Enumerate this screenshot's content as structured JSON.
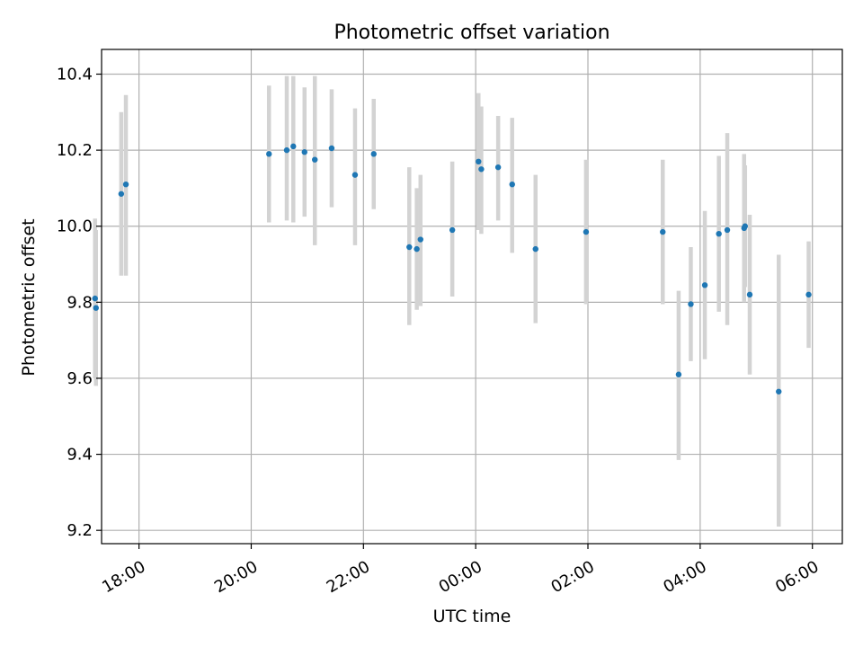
{
  "chart_data": {
    "type": "scatter",
    "title": "Photometric offset variation",
    "xlabel": "UTC time",
    "ylabel": "Photometric offset",
    "x_axis_kind": "time",
    "xlim": [
      "17:20",
      "06:32"
    ],
    "ylim": [
      9.165,
      10.465
    ],
    "grid": true,
    "xticks": [
      "18:00",
      "20:00",
      "22:00",
      "00:00",
      "02:00",
      "04:00",
      "06:00"
    ],
    "yticks": [
      "9.2",
      "9.4",
      "9.6",
      "9.8",
      "10.0",
      "10.2",
      "10.4"
    ],
    "colors": {
      "point": "#1f77b4",
      "errorbar": "#d3d3d3",
      "grid": "#b0b0b0"
    },
    "points": [
      {
        "t": "17:13",
        "y": 9.81,
        "lo": 9.6,
        "hi": 10.02
      },
      {
        "t": "17:14",
        "y": 9.785,
        "lo": 9.58,
        "hi": 9.99
      },
      {
        "t": "17:41",
        "y": 10.085,
        "lo": 9.87,
        "hi": 10.3
      },
      {
        "t": "17:46",
        "y": 10.11,
        "lo": 9.87,
        "hi": 10.345
      },
      {
        "t": "20:19",
        "y": 10.19,
        "lo": 10.01,
        "hi": 10.37
      },
      {
        "t": "20:38",
        "y": 10.2,
        "lo": 10.015,
        "hi": 10.395
      },
      {
        "t": "20:45",
        "y": 10.21,
        "lo": 10.01,
        "hi": 10.395
      },
      {
        "t": "20:57",
        "y": 10.195,
        "lo": 10.025,
        "hi": 10.365
      },
      {
        "t": "21:08",
        "y": 10.175,
        "lo": 9.95,
        "hi": 10.395
      },
      {
        "t": "21:26",
        "y": 10.205,
        "lo": 10.05,
        "hi": 10.36
      },
      {
        "t": "21:51",
        "y": 10.135,
        "lo": 9.95,
        "hi": 10.31
      },
      {
        "t": "22:11",
        "y": 10.19,
        "lo": 10.045,
        "hi": 10.335
      },
      {
        "t": "22:49",
        "y": 9.945,
        "lo": 9.74,
        "hi": 10.155
      },
      {
        "t": "22:57",
        "y": 9.94,
        "lo": 9.78,
        "hi": 10.1
      },
      {
        "t": "23:01",
        "y": 9.965,
        "lo": 9.79,
        "hi": 10.135
      },
      {
        "t": "23:35",
        "y": 9.99,
        "lo": 9.815,
        "hi": 10.17
      },
      {
        "t": "00:03",
        "y": 10.17,
        "lo": 9.99,
        "hi": 10.35
      },
      {
        "t": "00:06",
        "y": 10.15,
        "lo": 9.98,
        "hi": 10.315
      },
      {
        "t": "00:24",
        "y": 10.155,
        "lo": 10.015,
        "hi": 10.29
      },
      {
        "t": "00:39",
        "y": 10.11,
        "lo": 9.93,
        "hi": 10.285
      },
      {
        "t": "01:04",
        "y": 9.94,
        "lo": 9.745,
        "hi": 10.135
      },
      {
        "t": "01:58",
        "y": 9.985,
        "lo": 9.795,
        "hi": 10.175
      },
      {
        "t": "03:20",
        "y": 9.985,
        "lo": 9.795,
        "hi": 10.175
      },
      {
        "t": "03:37",
        "y": 9.61,
        "lo": 9.385,
        "hi": 9.83
      },
      {
        "t": "03:50",
        "y": 9.795,
        "lo": 9.645,
        "hi": 9.945
      },
      {
        "t": "04:05",
        "y": 9.845,
        "lo": 9.65,
        "hi": 10.04
      },
      {
        "t": "04:20",
        "y": 9.98,
        "lo": 9.775,
        "hi": 10.185
      },
      {
        "t": "04:29",
        "y": 9.99,
        "lo": 9.74,
        "hi": 10.245
      },
      {
        "t": "04:47",
        "y": 9.995,
        "lo": 9.8,
        "hi": 10.19
      },
      {
        "t": "04:48",
        "y": 10.0,
        "lo": 9.84,
        "hi": 10.16
      },
      {
        "t": "04:53",
        "y": 9.82,
        "lo": 9.61,
        "hi": 10.03
      },
      {
        "t": "05:24",
        "y": 9.565,
        "lo": 9.21,
        "hi": 9.925
      },
      {
        "t": "05:56",
        "y": 9.82,
        "lo": 9.68,
        "hi": 9.96
      }
    ]
  }
}
